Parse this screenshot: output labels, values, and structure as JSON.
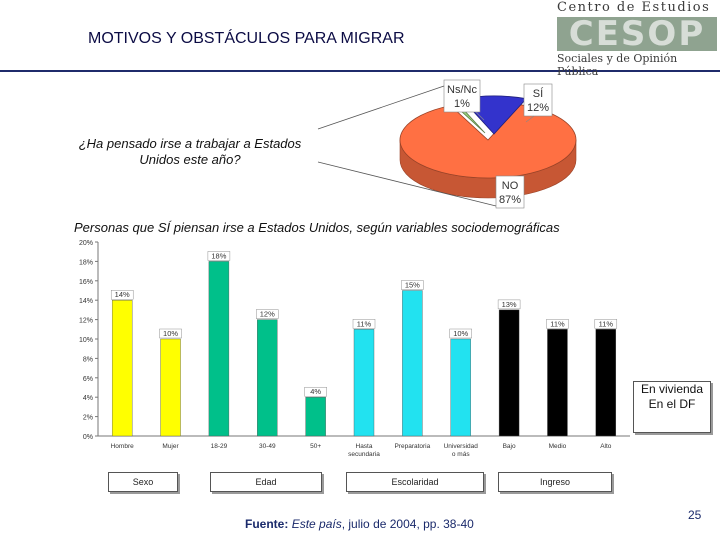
{
  "header": {
    "title": "MOTIVOS Y OBSTÁCULOS PARA MIGRAR",
    "logo_top": "Centro de Estudios",
    "logo_mark": "CESOP",
    "logo_bottom": "Sociales y de Opinión Pública"
  },
  "question": "¿Ha pensado irse a trabajar a Estados Unidos este año?",
  "subtitle": "Personas que SÍ piensan irse a Estados Unidos, según variables sociodemográficas",
  "note": {
    "line1": "En vivienda",
    "line2": "En el DF"
  },
  "groups": [
    "Sexo",
    "Edad",
    "Escolaridad",
    "Ingreso"
  ],
  "source": {
    "label": "Fuente:",
    "publication": "Este país",
    "rest": ", julio de 2004, pp. 38-40"
  },
  "page_number": "25",
  "colors": {
    "yellow": "#ffff00",
    "green": "#00c08a",
    "cyan": "#22e2f0",
    "black": "#000000",
    "orange": "#ff7043",
    "blue": "#3333cc",
    "navy": "#1a2a6b"
  },
  "chart_data": [
    {
      "type": "pie",
      "title": "¿Ha pensado irse a trabajar a Estados Unidos este año?",
      "slices": [
        {
          "label": "NO",
          "value": 87,
          "value_label": "87%",
          "color": "#ff7043"
        },
        {
          "label": "SÍ",
          "value": 12,
          "value_label": "12%",
          "color": "#3333cc"
        },
        {
          "label": "Ns/Nc",
          "value": 1,
          "value_label": "1%",
          "color": "#9ad07a"
        }
      ]
    },
    {
      "type": "bar",
      "title": "Personas que SÍ piensan irse a Estados Unidos, según variables sociodemográficas",
      "categories": [
        "Hombre",
        "Mujer",
        "18-29",
        "30-49",
        "50+",
        "Hasta secundaria",
        "Preparatoria",
        "Universidad o más",
        "Bajo",
        "Medio",
        "Alto"
      ],
      "category_lines": [
        [
          "Hombre"
        ],
        [
          "Mujer"
        ],
        [
          "18-29"
        ],
        [
          "30-49"
        ],
        [
          "50+"
        ],
        [
          "Hasta",
          "secundaria"
        ],
        [
          "Preparatoria"
        ],
        [
          "Universidad",
          "o más"
        ],
        [
          "Bajo"
        ],
        [
          "Medio"
        ],
        [
          "Alto"
        ]
      ],
      "values": [
        14,
        10,
        18,
        12,
        4,
        11,
        15,
        10,
        13,
        11,
        11
      ],
      "value_labels": [
        "14%",
        "10%",
        "18%",
        "12%",
        "4%",
        "11%",
        "15%",
        "10%",
        "13%",
        "11%",
        "11%"
      ],
      "colors": [
        "#ffff00",
        "#ffff00",
        "#00c08a",
        "#00c08a",
        "#00c08a",
        "#22e2f0",
        "#22e2f0",
        "#22e2f0",
        "#000000",
        "#000000",
        "#000000"
      ],
      "groups": [
        {
          "name": "Sexo",
          "indices": [
            0,
            1
          ]
        },
        {
          "name": "Edad",
          "indices": [
            2,
            3,
            4
          ]
        },
        {
          "name": "Escolaridad",
          "indices": [
            5,
            6,
            7
          ]
        },
        {
          "name": "Ingreso",
          "indices": [
            8,
            9,
            10
          ]
        }
      ],
      "ylim": [
        0,
        20
      ],
      "yticks": [
        0,
        2,
        4,
        6,
        8,
        10,
        12,
        14,
        16,
        18,
        20
      ],
      "ytick_labels": [
        "0%",
        "2%",
        "4%",
        "6%",
        "8%",
        "10%",
        "12%",
        "14%",
        "16%",
        "18%",
        "20%"
      ],
      "xlabel": "",
      "ylabel": ""
    }
  ]
}
